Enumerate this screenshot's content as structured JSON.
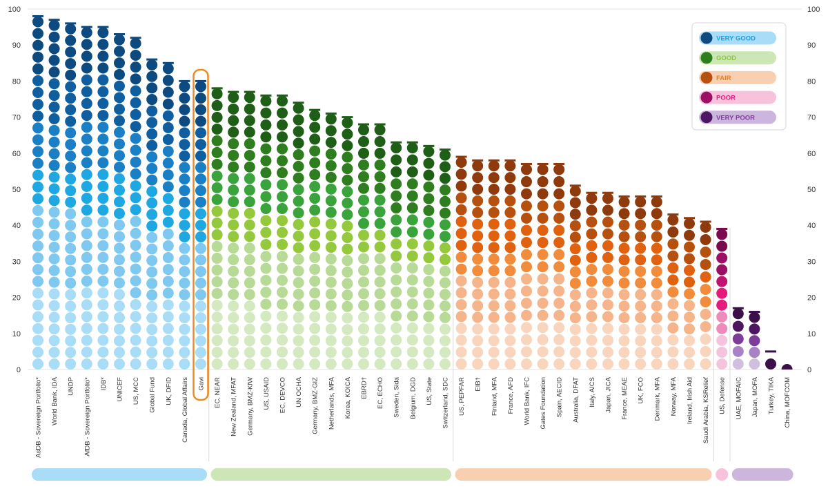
{
  "chart_data": {
    "type": "bar",
    "title": "",
    "xlabel": "",
    "ylabel": "",
    "ylim": [
      0,
      100
    ],
    "y_ticks": [
      "0",
      "10",
      "20",
      "30",
      "40",
      "50",
      "60",
      "70",
      "80",
      "90",
      "100"
    ],
    "highlighted_category": "Gavi",
    "legend": [
      {
        "label": "VERY GOOD",
        "color": "#0d4a80",
        "pill": "#a9dcf6",
        "text_color": "#1da1e0"
      },
      {
        "label": "GOOD",
        "color": "#2e7d1e",
        "pill": "#cde6b5",
        "text_color": "#8cc63f"
      },
      {
        "label": "FAIR",
        "color": "#b5500e",
        "pill": "#f8cfb0",
        "text_color": "#ee7d20"
      },
      {
        "label": "POOR",
        "color": "#9b1064",
        "pill": "#f7c3dc",
        "text_color": "#e6197d"
      },
      {
        "label": "VERY POOR",
        "color": "#4c1660",
        "pill": "#cdb6dd",
        "text_color": "#7d3c98"
      }
    ],
    "groups": [
      {
        "name": "VERY GOOD",
        "color": "#a9dcf6",
        "shades": [
          "#a9dcf6",
          "#7fc8ef",
          "#1ea7e1",
          "#1a7fc4",
          "#0f5fa0",
          "#0d4a80"
        ],
        "count": 11
      },
      {
        "name": "GOOD",
        "color": "#cde6b5",
        "shades": [
          "#d4e9c0",
          "#b7db97",
          "#95c93d",
          "#3aa33b",
          "#2e7d1e",
          "#1f5e16"
        ],
        "count": 15
      },
      {
        "name": "FAIR",
        "color": "#f8cfb0",
        "shades": [
          "#f9d5bd",
          "#f5b48a",
          "#f08c3c",
          "#e0610f",
          "#b5500e",
          "#8e3a0c"
        ],
        "count": 16
      },
      {
        "name": "POOR",
        "color": "#f7c3dc",
        "shades": [
          "#f5c3dc",
          "#ed8cbc",
          "#e6197d",
          "#c01370",
          "#9b1064",
          "#7a0a4f"
        ],
        "count": 1
      },
      {
        "name": "VERY POOR",
        "color": "#cdb6dd",
        "shades": [
          "#d1bfe0",
          "#a982c6",
          "#7d3c98",
          "#65237f",
          "#4c1660",
          "#3b1049"
        ],
        "count": 4
      }
    ],
    "categories": [
      "AsDB - Sovereign Portfolio*",
      "World Bank, IDA",
      "UNDP",
      "AfDB - Sovereign Portfolio*",
      "IDB*",
      "UNICEF",
      "US, MCC",
      "Global Fund",
      "UK, DFID",
      "Canada, Global Affairs",
      "Gavi",
      "EC, NEAR",
      "New Zealand, MFAT",
      "Germany, BMZ-KfW",
      "US, USAID",
      "EC, DEVCO",
      "UN OCHA",
      "Germany, BMZ-GIZ",
      "Netherlands, MFA",
      "Korea, KOICA",
      "EBRD†",
      "EC, ECHO",
      "Sweden, Sida",
      "Belgium, DGD",
      "US, State",
      "Switzerland, SDC",
      "US, PEPFAR",
      "EIB†",
      "Finland, MFA",
      "France, AFD",
      "World Bank, IFC",
      "Gates Foundation",
      "Spain, AECID",
      "Australia, DFAT",
      "Italy, AICS",
      "Japan, JICA",
      "France, MEAE",
      "UK, FCO",
      "Denmark, MFA",
      "Norway, MFA",
      "Ireland, Irish Aid",
      "Saudi Arabia, KSRelief",
      "US, Defense",
      "UAE, MOFAIC",
      "Japan, MOFA",
      "Turkey, TIKA",
      "China, MOFCOM"
    ],
    "values": [
      98,
      97,
      96,
      95,
      95,
      93,
      92,
      86,
      85,
      80,
      80,
      78,
      77,
      77,
      76,
      76,
      74,
      72,
      71,
      70,
      68,
      68,
      63,
      63,
      62,
      61,
      59,
      58,
      58,
      58,
      57,
      57,
      57,
      51,
      49,
      49,
      48,
      48,
      48,
      43,
      42,
      41,
      39,
      17,
      16,
      5,
      1
    ]
  }
}
